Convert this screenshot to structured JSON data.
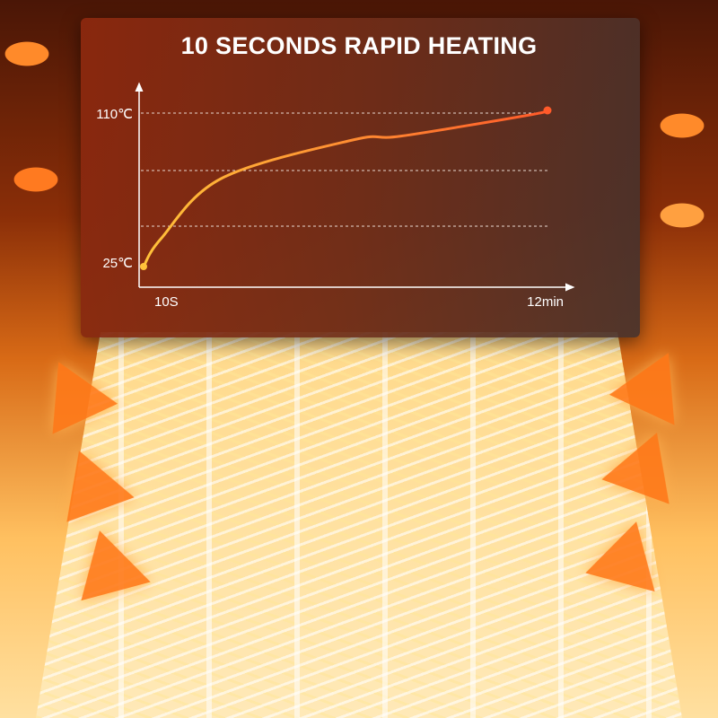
{
  "chart_data": {
    "type": "line",
    "title": "10 SECONDS RAPID HEATING",
    "xlabel": "",
    "ylabel": "",
    "x_tick_labels": [
      "10S",
      "12min"
    ],
    "y_tick_labels": [
      "25℃",
      "110℃"
    ],
    "x_unit": "min",
    "y_unit": "℃",
    "xlim": [
      0.167,
      12
    ],
    "ylim": [
      25,
      110
    ],
    "grid": "horizontal dashed",
    "series": [
      {
        "x": [
          0.167,
          0.67,
          2.45,
          6.32,
          7.71,
          11.47,
          12
        ],
        "y": [
          25,
          40,
          73,
          94,
          96,
          107.5,
          110
        ],
        "color_start": "#ffc23a",
        "color_end": "#ff5a2a"
      }
    ]
  },
  "colors": {
    "axis": "#ffffff",
    "grid": "#e8d8d0",
    "line_start": "#ffc23a",
    "line_end": "#ff5a2a"
  }
}
